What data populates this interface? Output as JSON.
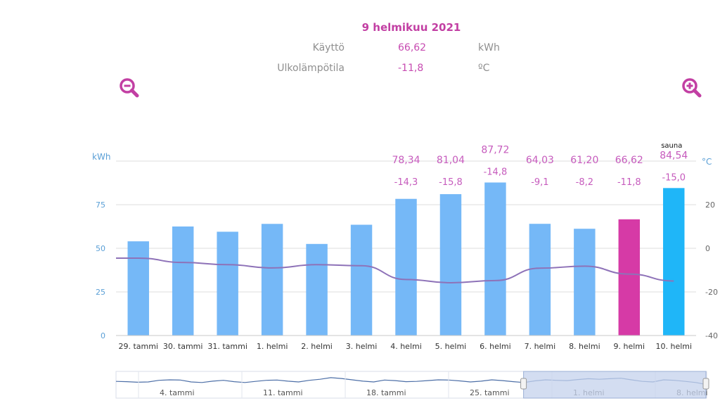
{
  "header": {
    "date": "9 helmikuu 2021",
    "rows": [
      {
        "label": "Käyttö",
        "value": "66,62",
        "unit": "kWh"
      },
      {
        "label": "Ulkolämpötila",
        "value": "-11,8",
        "unit": "ºC"
      }
    ]
  },
  "zoom": {
    "out_icon": "zoom-out-icon",
    "in_icon": "zoom-in-icon"
  },
  "colors": {
    "bar": "#75b8f7",
    "bar_selected": "#d63aa6",
    "bar_latest": "#1fb6f8",
    "temp_line": "#8e72b8",
    "label": "#c65bbd",
    "axis_text": "#5a9fd6",
    "navigator_fill": "#c4d2ec"
  },
  "chart_data": {
    "type": "bar",
    "categories": [
      "29. tammi",
      "30. tammi",
      "31. tammi",
      "1. helmi",
      "2. helmi",
      "3. helmi",
      "4. helmi",
      "5. helmi",
      "6. helmi",
      "7. helmi",
      "8. helmi",
      "9. helmi",
      "10. helmi"
    ],
    "series": [
      {
        "name": "kWh",
        "values": [
          54,
          62.5,
          59.5,
          64,
          52.5,
          63.5,
          78.34,
          81.04,
          87.72,
          64.03,
          61.2,
          66.62,
          84.54
        ]
      },
      {
        "name": "°C",
        "values": [
          -4.5,
          -6.5,
          -7.5,
          -9,
          -7.5,
          -8,
          -14.3,
          -15.8,
          -14.8,
          -9.1,
          -8.2,
          -11.8,
          -15.0
        ]
      }
    ],
    "value_labels": [
      "",
      "",
      "",
      "",
      "",
      "",
      "78,34",
      "81,04",
      "87,72",
      "64,03",
      "61,20",
      "66,62",
      "84,54"
    ],
    "temp_labels": [
      "",
      "",
      "",
      "",
      "",
      "",
      "-14,3",
      "-15,8",
      "-14,8",
      "-9,1",
      "-8,2",
      "-11,8",
      "-15,0"
    ],
    "annotations": [
      {
        "category": "10. helmi",
        "text": "sauna"
      }
    ],
    "selected_index": 11,
    "y_left": {
      "label": "kWh",
      "ticks": [
        "0",
        "25",
        "50",
        "75"
      ],
      "range": [
        0,
        100
      ]
    },
    "y_right": {
      "label": "°C",
      "ticks": [
        "20",
        "0",
        "-20",
        "-40"
      ],
      "range": [
        -40,
        40
      ]
    },
    "navigator": {
      "labels": [
        "4. tammi",
        "11. tammi",
        "18. tammi",
        "25. tammi",
        "1. helmi",
        "8. helmi"
      ],
      "values": [
        52,
        51,
        49,
        50,
        56,
        58,
        57,
        50,
        48,
        53,
        56,
        51,
        48,
        52,
        56,
        57,
        53,
        50,
        56,
        60,
        66,
        63,
        58,
        53,
        50,
        57,
        55,
        51,
        52,
        55,
        58,
        57,
        54,
        50,
        53,
        58,
        55,
        51,
        48,
        54,
        58,
        56,
        55,
        59,
        62,
        60,
        62,
        64,
        58,
        52,
        50,
        58,
        56,
        52,
        48,
        40
      ]
    }
  }
}
